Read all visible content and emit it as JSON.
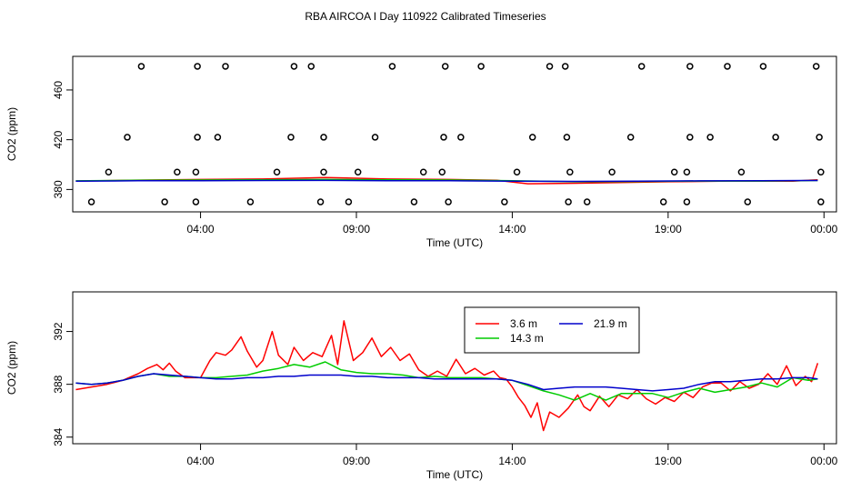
{
  "title": "RBA AIRCOA I  Day 110922  Calibrated Timeseries",
  "chart_data": [
    {
      "type": "scatter",
      "title": "RBA AIRCOA I  Day 110922  Calibrated Timeseries",
      "xlabel": "Time (UTC)",
      "ylabel": "CO2 (ppm)",
      "x_tick_labels": [
        "04:00",
        "09:00",
        "14:00",
        "19:00",
        "00:00"
      ],
      "x_tick_hours": [
        4,
        9,
        14,
        19,
        24
      ],
      "xlim": [
        -0.1,
        24.4
      ],
      "y_ticks": [
        380,
        420,
        460
      ],
      "y_tick_labels": [
        "380",
        "420",
        "460"
      ],
      "ylim": [
        362,
        487
      ],
      "calibration_points": {
        "levels": [
          370,
          394,
          422,
          479
        ],
        "hours": [
          [
            0.5,
            2.85,
            3.85,
            5.6,
            7.85,
            8.75,
            10.85,
            11.95,
            13.75,
            15.8,
            16.4,
            18.85,
            19.6,
            21.55,
            23.9
          ],
          [
            1.05,
            3.25,
            3.85,
            6.45,
            7.95,
            9.05,
            11.15,
            11.75,
            14.15,
            15.85,
            17.2,
            19.2,
            19.6,
            21.35,
            23.9
          ],
          [
            1.65,
            3.9,
            4.55,
            6.9,
            7.95,
            9.6,
            11.8,
            12.35,
            14.65,
            15.75,
            17.8,
            19.7,
            20.35,
            22.45,
            23.85
          ],
          [
            2.1,
            3.9,
            4.8,
            7.0,
            7.55,
            10.15,
            11.85,
            13.0,
            15.2,
            15.7,
            18.15,
            19.7,
            20.9,
            22.05,
            23.75
          ]
        ]
      },
      "series": [
        {
          "name": "3.6 m",
          "color": "#ff0000",
          "x": [
            0.0,
            2.0,
            4.0,
            6.0,
            8.0,
            10.0,
            12.0,
            13.5,
            14.5,
            15.5,
            17.0,
            19.0,
            21.0,
            23.0,
            23.8
          ],
          "y": [
            386.8,
            387.5,
            388.0,
            388.4,
            389.6,
            388.4,
            388.0,
            387.4,
            384.6,
            384.8,
            385.4,
            386.2,
            386.8,
            386.6,
            387.8
          ]
        },
        {
          "name": "14.3 m",
          "color": "#00cc00",
          "x": [
            0.0,
            2.0,
            4.0,
            6.0,
            8.0,
            10.0,
            12.0,
            14.0,
            16.0,
            18.0,
            20.0,
            22.0,
            23.8
          ],
          "y": [
            386.9,
            387.4,
            387.6,
            387.8,
            388.0,
            387.8,
            387.6,
            387.0,
            386.2,
            386.4,
            386.8,
            386.8,
            387.2
          ]
        },
        {
          "name": "21.9 m",
          "color": "#0000cc",
          "x": [
            0.0,
            2.0,
            4.0,
            6.0,
            8.0,
            10.0,
            12.0,
            14.0,
            16.0,
            18.0,
            20.0,
            22.0,
            23.8
          ],
          "y": [
            386.7,
            387.0,
            387.1,
            387.2,
            387.3,
            387.1,
            387.0,
            386.7,
            386.5,
            386.6,
            386.9,
            387.0,
            387.2
          ]
        }
      ]
    },
    {
      "type": "line",
      "xlabel": "Time (UTC)",
      "ylabel": "CO2 (ppm)",
      "x_tick_labels": [
        "04:00",
        "09:00",
        "14:00",
        "19:00",
        "00:00"
      ],
      "x_tick_hours": [
        4,
        9,
        14,
        19,
        24
      ],
      "xlim": [
        -0.1,
        24.4
      ],
      "y_ticks": [
        384,
        388,
        392
      ],
      "y_tick_labels": [
        "384",
        "388",
        "392"
      ],
      "ylim": [
        383.5,
        395.0
      ],
      "legend": {
        "position": "top-center",
        "columns": 2
      },
      "series": [
        {
          "name": "3.6 m",
          "color": "#ff0000",
          "x": [
            0.0,
            0.5,
            1.0,
            1.5,
            2.0,
            2.3,
            2.6,
            2.8,
            3.0,
            3.2,
            3.5,
            4.0,
            4.3,
            4.5,
            4.8,
            5.0,
            5.3,
            5.5,
            5.8,
            6.0,
            6.3,
            6.5,
            6.8,
            7.0,
            7.3,
            7.6,
            7.9,
            8.2,
            8.4,
            8.6,
            8.9,
            9.2,
            9.5,
            9.8,
            10.1,
            10.4,
            10.7,
            11.0,
            11.3,
            11.6,
            11.9,
            12.2,
            12.5,
            12.8,
            13.1,
            13.4,
            13.6,
            13.8,
            14.0,
            14.2,
            14.4,
            14.6,
            14.8,
            15.0,
            15.2,
            15.5,
            15.8,
            16.1,
            16.3,
            16.5,
            16.8,
            17.1,
            17.4,
            17.7,
            18.0,
            18.3,
            18.6,
            18.9,
            19.2,
            19.5,
            19.8,
            20.1,
            20.4,
            20.7,
            21.0,
            21.3,
            21.6,
            21.9,
            22.2,
            22.5,
            22.8,
            23.1,
            23.4,
            23.6,
            23.8
          ],
          "y": [
            387.6,
            387.8,
            388.0,
            388.3,
            388.8,
            389.2,
            389.5,
            389.1,
            389.6,
            389.0,
            388.5,
            388.5,
            389.8,
            390.4,
            390.2,
            390.6,
            391.6,
            390.5,
            389.3,
            389.8,
            392.0,
            390.2,
            389.5,
            390.8,
            389.8,
            390.4,
            390.1,
            391.7,
            389.5,
            392.8,
            389.8,
            390.4,
            391.5,
            390.1,
            390.8,
            389.8,
            390.3,
            389.1,
            388.6,
            389.0,
            388.6,
            389.9,
            388.8,
            389.2,
            388.7,
            389.0,
            388.5,
            388.4,
            387.8,
            387.0,
            386.4,
            385.5,
            386.6,
            384.5,
            385.9,
            385.5,
            386.2,
            387.2,
            386.3,
            386.0,
            387.1,
            386.3,
            387.2,
            386.9,
            387.6,
            386.9,
            386.5,
            387.0,
            386.7,
            387.4,
            387.0,
            387.8,
            388.1,
            388.1,
            387.5,
            388.2,
            387.7,
            388.0,
            388.8,
            388.0,
            389.4,
            387.9,
            388.6,
            388.2,
            389.6
          ]
        },
        {
          "name": "14.3 m",
          "color": "#00cc00",
          "x": [
            0.0,
            0.5,
            1.0,
            1.5,
            2.0,
            2.5,
            3.0,
            3.5,
            4.0,
            4.5,
            5.0,
            5.5,
            6.0,
            6.5,
            7.0,
            7.5,
            8.0,
            8.5,
            9.0,
            9.5,
            10.0,
            10.5,
            11.0,
            11.5,
            12.0,
            12.5,
            13.0,
            13.5,
            14.0,
            14.5,
            15.0,
            15.5,
            16.0,
            16.5,
            17.0,
            17.5,
            18.0,
            18.5,
            19.0,
            19.5,
            20.0,
            20.5,
            21.0,
            21.5,
            22.0,
            22.5,
            23.0,
            23.5,
            23.8
          ],
          "y": [
            388.1,
            388.0,
            388.1,
            388.3,
            388.6,
            388.8,
            388.6,
            388.6,
            388.5,
            388.5,
            388.6,
            388.7,
            389.0,
            389.2,
            389.5,
            389.3,
            389.7,
            389.1,
            388.9,
            388.8,
            388.8,
            388.7,
            388.5,
            388.6,
            388.5,
            388.5,
            388.5,
            388.4,
            388.3,
            387.9,
            387.5,
            387.2,
            386.8,
            387.3,
            386.8,
            387.3,
            387.3,
            387.3,
            387.0,
            387.4,
            387.7,
            387.4,
            387.6,
            387.8,
            388.1,
            387.8,
            388.5,
            388.3,
            388.4
          ]
        },
        {
          "name": "21.9 m",
          "color": "#0000cc",
          "x": [
            0.0,
            0.5,
            1.0,
            1.5,
            2.0,
            2.5,
            3.0,
            3.5,
            4.0,
            4.5,
            5.0,
            5.5,
            6.0,
            6.5,
            7.0,
            7.5,
            8.0,
            8.5,
            9.0,
            9.5,
            10.0,
            10.5,
            11.0,
            11.5,
            12.0,
            12.5,
            13.0,
            13.5,
            14.0,
            14.5,
            15.0,
            15.5,
            16.0,
            16.5,
            17.0,
            17.5,
            18.0,
            18.5,
            19.0,
            19.5,
            20.0,
            20.5,
            21.0,
            21.5,
            22.0,
            22.5,
            23.0,
            23.5,
            23.8
          ],
          "y": [
            388.1,
            388.0,
            388.1,
            388.3,
            388.6,
            388.8,
            388.7,
            388.6,
            388.5,
            388.4,
            388.4,
            388.5,
            388.5,
            388.6,
            388.6,
            388.7,
            388.7,
            388.7,
            388.6,
            388.6,
            388.5,
            388.5,
            388.5,
            388.4,
            388.4,
            388.4,
            388.4,
            388.4,
            388.3,
            388.0,
            387.6,
            387.7,
            387.8,
            387.8,
            387.8,
            387.7,
            387.6,
            387.5,
            387.6,
            387.7,
            388.0,
            388.2,
            388.2,
            388.3,
            388.4,
            388.4,
            388.5,
            388.5,
            388.4
          ]
        }
      ]
    }
  ]
}
